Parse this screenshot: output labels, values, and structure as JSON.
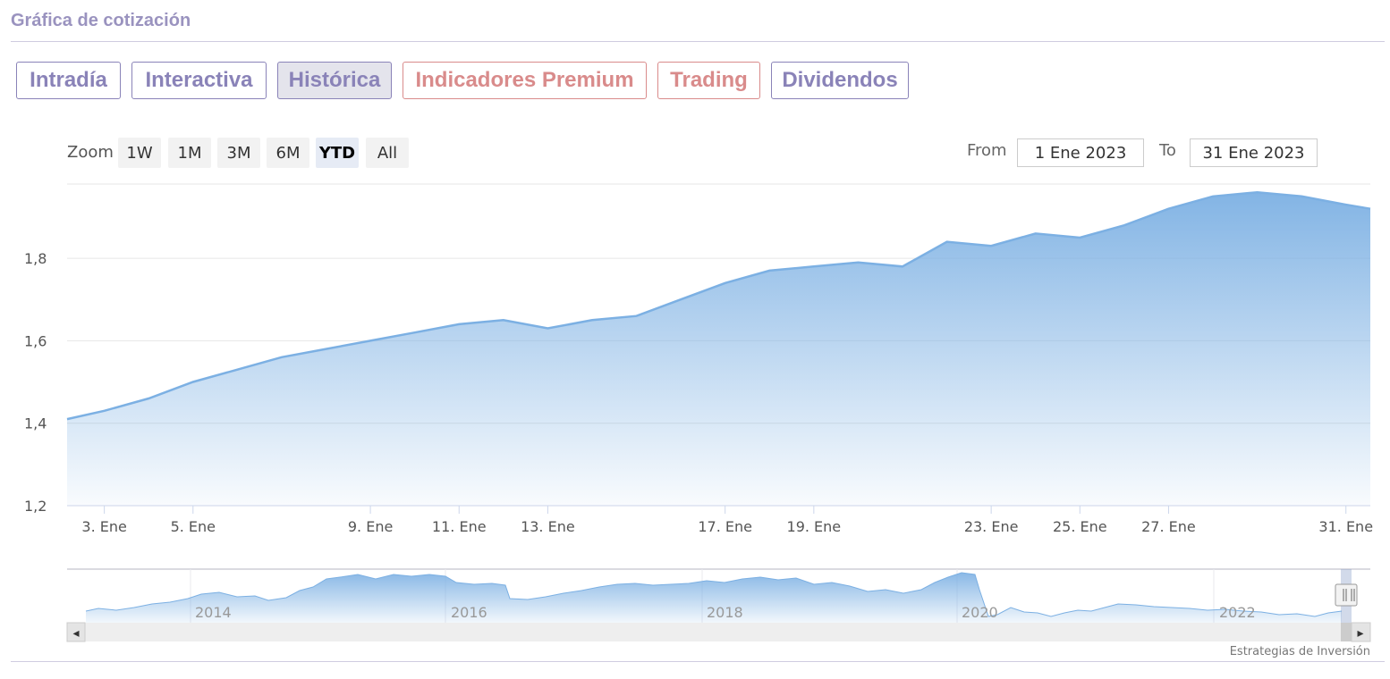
{
  "header": {
    "title": "Gráfica de cotización"
  },
  "tabs": [
    {
      "label": "Intradía",
      "state": "normal"
    },
    {
      "label": "Interactiva",
      "state": "normal"
    },
    {
      "label": "Histórica",
      "state": "active"
    },
    {
      "label": "Indicadores Premium",
      "state": "accent"
    },
    {
      "label": "Trading",
      "state": "accent"
    },
    {
      "label": "Dividendos",
      "state": "normal"
    }
  ],
  "zoom": {
    "label": "Zoom",
    "buttons": [
      "1W",
      "1M",
      "3M",
      "6M",
      "YTD",
      "All"
    ],
    "selected": "YTD"
  },
  "range": {
    "from_label": "From",
    "from_value": "1 Ene 2023",
    "to_label": "To",
    "to_value": "31 Ene 2023"
  },
  "colors": {
    "accent": "#8a83b8",
    "accent_red": "#d98b8b",
    "series": "#7cb0e3"
  },
  "chart_data": {
    "type": "area",
    "title": "",
    "xlabel": "",
    "ylabel": "",
    "ylim": [
      1.2,
      1.98
    ],
    "yticks": [
      "1,2",
      "1,4",
      "1,6",
      "1,8"
    ],
    "ytick_values": [
      1.2,
      1.4,
      1.6,
      1.8
    ],
    "xticks": [
      "3. Ene",
      "5. Ene",
      "9. Ene",
      "11. Ene",
      "13. Ene",
      "17. Ene",
      "19. Ene",
      "23. Ene",
      "25. Ene",
      "27. Ene",
      "31. Ene"
    ],
    "xtick_days": [
      3,
      5,
      9,
      11,
      13,
      17,
      19,
      23,
      25,
      27,
      31
    ],
    "x_day_range": [
      2.16,
      31.55
    ],
    "grid": true,
    "legend": "none",
    "series": [
      {
        "x_days": [
          2.16,
          3,
          4,
          5,
          6,
          7,
          8,
          9,
          10,
          11,
          12,
          13,
          14,
          15,
          16,
          17,
          18,
          19,
          20,
          21,
          22,
          23,
          24,
          25,
          26,
          27,
          28,
          29,
          30,
          31,
          31.55
        ],
        "values": [
          1.41,
          1.43,
          1.46,
          1.5,
          1.53,
          1.56,
          1.58,
          1.6,
          1.62,
          1.64,
          1.65,
          1.63,
          1.65,
          1.66,
          1.7,
          1.74,
          1.77,
          1.78,
          1.79,
          1.78,
          1.84,
          1.83,
          1.86,
          1.85,
          1.88,
          1.92,
          1.95,
          1.96,
          1.95,
          1.93,
          1.92
        ]
      }
    ]
  },
  "navigator": {
    "year_labels": [
      "2014",
      "2016",
      "2018",
      "2020",
      "2022"
    ],
    "credit": "Estrategias de Inversión",
    "scroll_left": "◂",
    "scroll_right": "▸"
  }
}
